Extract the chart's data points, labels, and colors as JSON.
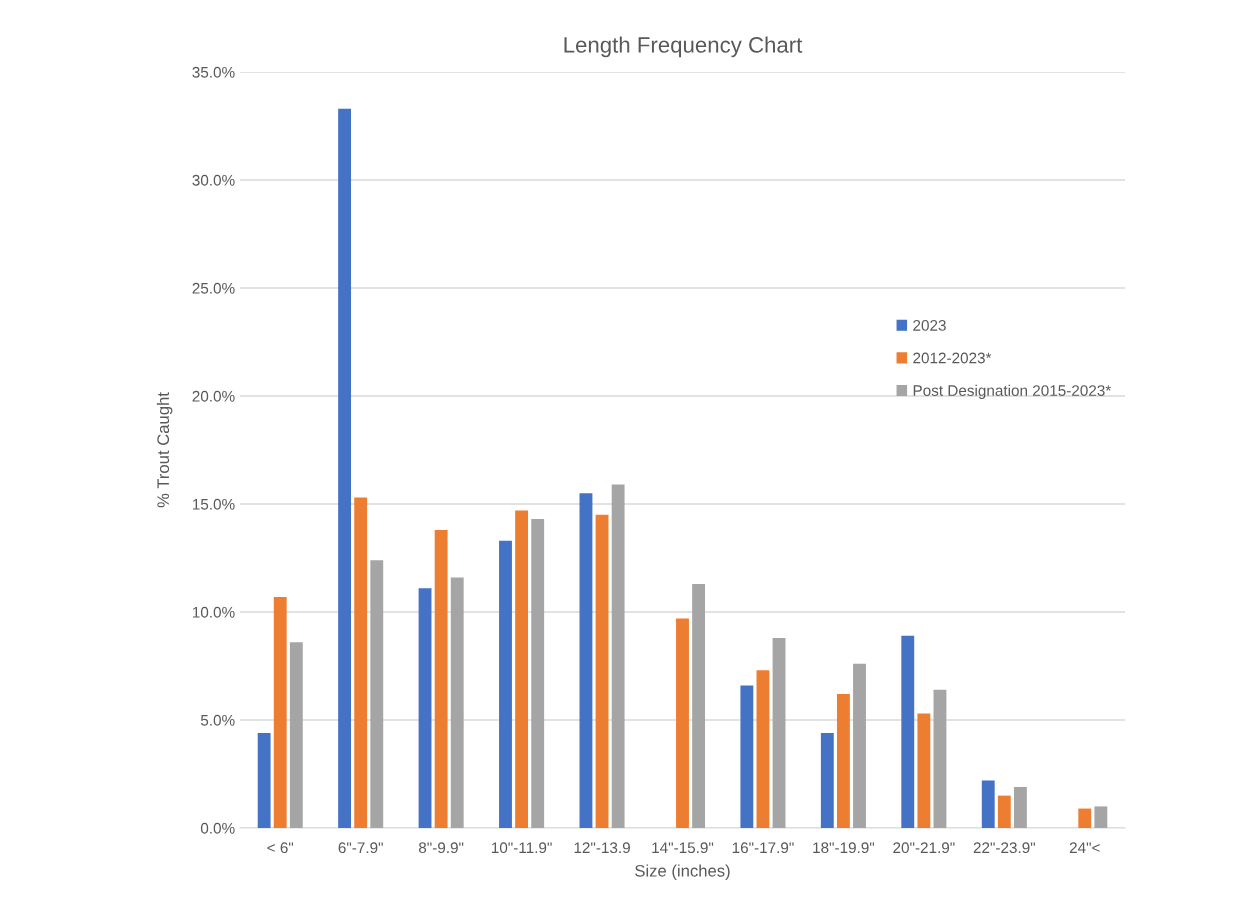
{
  "chart_data": {
    "type": "bar",
    "title": "Length Frequency Chart",
    "xlabel": "Size (inches)",
    "ylabel": "% Trout Caught",
    "categories": [
      "< 6\"",
      "6\"-7.9\"",
      "8\"-9.9\"",
      "10\"-11.9\"",
      "12\"-13.9",
      "14\"-15.9\"",
      "16\"-17.9\"",
      "18\"-19.9\"",
      "20\"-21.9\"",
      "22\"-23.9\"",
      "24\"<"
    ],
    "series": [
      {
        "name": "2023",
        "color": "#4472c4",
        "values": [
          4.4,
          33.3,
          11.1,
          13.3,
          15.5,
          null,
          6.6,
          4.4,
          8.9,
          2.2,
          null
        ]
      },
      {
        "name": "2012-2023*",
        "color": "#ed7d31",
        "values": [
          10.7,
          15.3,
          13.8,
          14.7,
          14.5,
          9.7,
          7.3,
          6.2,
          5.3,
          1.5,
          0.9
        ]
      },
      {
        "name": "Post Designation 2015-2023*",
        "color": "#a5a5a5",
        "values": [
          8.6,
          12.4,
          11.6,
          14.3,
          15.9,
          11.3,
          8.8,
          7.6,
          6.4,
          1.9,
          1.0
        ]
      }
    ],
    "ylim": [
      0,
      35
    ],
    "yticks": [
      {
        "value": 0,
        "label": "0.0%"
      },
      {
        "value": 5,
        "label": "5.0%"
      },
      {
        "value": 10,
        "label": "10.0%"
      },
      {
        "value": 15,
        "label": "15.0%"
      },
      {
        "value": 20,
        "label": "20.0%"
      },
      {
        "value": 25,
        "label": "25.0%"
      },
      {
        "value": 30,
        "label": "30.0%"
      },
      {
        "value": 35,
        "label": "35.0%"
      }
    ],
    "grid": "y",
    "legend": "right"
  }
}
